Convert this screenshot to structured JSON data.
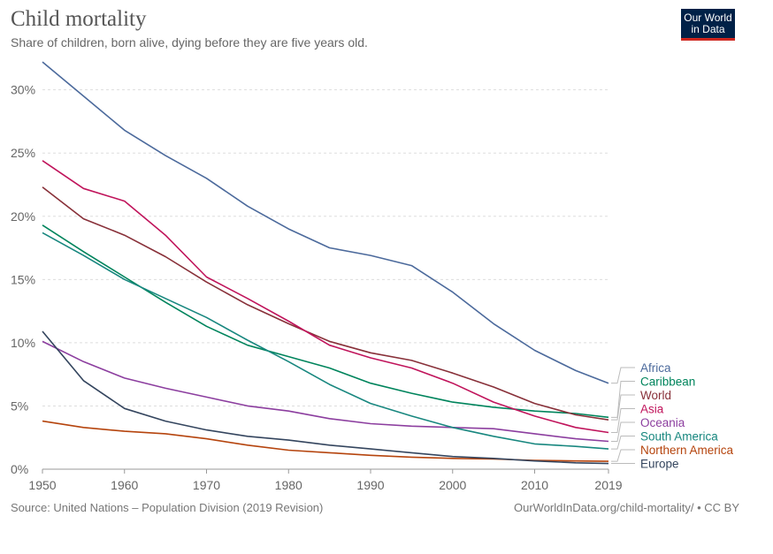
{
  "header": {
    "title": "Child mortality",
    "subtitle": "Share of children, born alive, dying before they are five years old."
  },
  "logo": {
    "line1": "Our World",
    "line2": "in Data"
  },
  "footer": {
    "source": "Source: United Nations – Population Division (2019 Revision)",
    "link": "OurWorldInData.org/child-mortality/ • CC BY"
  },
  "chart_data": {
    "type": "line",
    "title": "Child mortality",
    "xlabel": "",
    "ylabel": "",
    "xlim": [
      1950,
      2019
    ],
    "ylim": [
      0,
      32
    ],
    "x_ticks": [
      1950,
      1960,
      1970,
      1980,
      1990,
      2000,
      2010,
      2019
    ],
    "y_ticks": [
      0,
      5,
      10,
      15,
      20,
      25,
      30
    ],
    "y_tick_labels": [
      "0%",
      "5%",
      "10%",
      "15%",
      "20%",
      "25%",
      "30%"
    ],
    "grid": "horizontal dashed",
    "legend": "right (labels at line ends)",
    "x": [
      1950,
      1955,
      1960,
      1965,
      1970,
      1975,
      1980,
      1985,
      1990,
      1995,
      2000,
      2005,
      2010,
      2015,
      2019
    ],
    "series": [
      {
        "name": "Africa",
        "color": "#4c6a9c",
        "values": [
          32.2,
          29.5,
          26.8,
          24.8,
          23.0,
          20.8,
          19.0,
          17.5,
          16.9,
          16.1,
          14.0,
          11.5,
          9.4,
          7.8,
          6.8
        ]
      },
      {
        "name": "Caribbean",
        "color": "#00845c",
        "values": [
          19.3,
          17.2,
          15.2,
          13.2,
          11.3,
          9.8,
          8.9,
          8.0,
          6.8,
          6.0,
          5.3,
          4.9,
          4.6,
          4.4,
          4.1
        ]
      },
      {
        "name": "World",
        "color": "#883039",
        "values": [
          22.3,
          19.8,
          18.5,
          16.8,
          14.8,
          13.0,
          11.5,
          10.1,
          9.2,
          8.6,
          7.6,
          6.5,
          5.2,
          4.3,
          3.9
        ]
      },
      {
        "name": "Asia",
        "color": "#c0145b",
        "values": [
          24.4,
          22.2,
          21.2,
          18.5,
          15.2,
          13.5,
          11.7,
          9.8,
          8.8,
          8.0,
          6.8,
          5.3,
          4.2,
          3.3,
          2.9
        ]
      },
      {
        "name": "Oceania",
        "color": "#8c3e9f",
        "values": [
          10.1,
          8.5,
          7.2,
          6.4,
          5.7,
          5.0,
          4.6,
          4.0,
          3.6,
          3.4,
          3.3,
          3.2,
          2.8,
          2.4,
          2.2
        ]
      },
      {
        "name": "South America",
        "color": "#18877f",
        "values": [
          18.7,
          16.9,
          15.0,
          13.5,
          12.0,
          10.2,
          8.5,
          6.7,
          5.2,
          4.2,
          3.3,
          2.6,
          2.0,
          1.8,
          1.6
        ]
      },
      {
        "name": "Northern America",
        "color": "#b5440d",
        "values": [
          3.8,
          3.3,
          3.0,
          2.8,
          2.4,
          1.9,
          1.5,
          1.3,
          1.1,
          0.95,
          0.85,
          0.8,
          0.7,
          0.65,
          0.62
        ]
      },
      {
        "name": "Europe",
        "color": "#34455e",
        "values": [
          10.9,
          7.0,
          4.8,
          3.8,
          3.1,
          2.6,
          2.3,
          1.9,
          1.6,
          1.3,
          1.0,
          0.85,
          0.65,
          0.5,
          0.45
        ]
      }
    ]
  }
}
